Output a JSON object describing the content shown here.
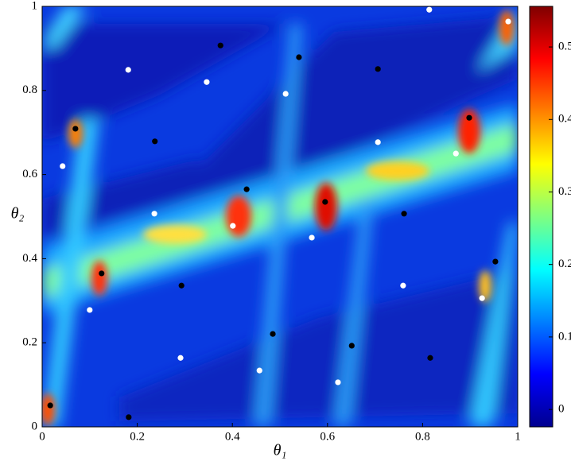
{
  "chart_data": {
    "type": "scatter",
    "xlabel": "θ₁",
    "ylabel": "θ₂",
    "xlim": [
      0,
      1
    ],
    "xticks": [
      0,
      0.2,
      0.4,
      0.6,
      0.8,
      1
    ],
    "ylim": [
      0,
      1
    ],
    "yticks": [
      0,
      0.2,
      0.4,
      0.6,
      0.8,
      1
    ],
    "colormap": "jet",
    "clim": [
      -0.024,
      0.556
    ],
    "cticks": [
      0,
      0.1,
      0.2,
      0.3,
      0.4,
      0.5
    ],
    "series": [
      {
        "color": "#000000",
        "x": [
          0.017,
          0.182,
          0.07,
          0.237,
          0.375,
          0.54,
          0.706,
          0.898,
          0.43,
          0.595,
          0.761,
          0.125,
          0.293,
          0.953,
          0.485,
          0.651,
          0.816
        ],
        "values": [
          0.051,
          0.023,
          0.709,
          0.679,
          0.907,
          0.879,
          0.851,
          0.735,
          0.565,
          0.535,
          0.507,
          0.365,
          0.336,
          0.393,
          0.221,
          0.193,
          0.164
        ]
      },
      {
        "color": "#ffffff",
        "x": [
          0.181,
          0.346,
          0.512,
          0.814,
          0.98,
          0.043,
          0.706,
          0.87,
          0.236,
          0.401,
          0.567,
          0.1,
          0.759,
          0.925,
          0.291,
          0.457,
          0.622
        ],
        "values": [
          0.849,
          0.82,
          0.792,
          0.992,
          0.964,
          0.62,
          0.677,
          0.65,
          0.507,
          0.478,
          0.45,
          0.278,
          0.336,
          0.306,
          0.164,
          0.134,
          0.106
        ]
      }
    ]
  }
}
